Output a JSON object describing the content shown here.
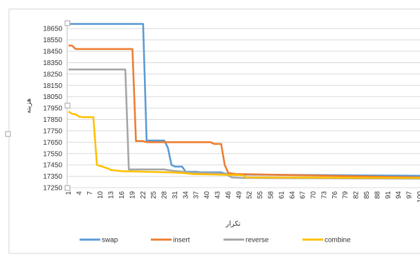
{
  "chart_data": {
    "type": "line",
    "xlabel": "تکرار",
    "ylabel": "هزینه",
    "ylim": [
      17250,
      18700
    ],
    "yticks": [
      18650,
      18550,
      18450,
      18350,
      18250,
      18150,
      18050,
      17950,
      17850,
      17750,
      17650,
      17550,
      17450,
      17350,
      17250
    ],
    "xticks": [
      1,
      4,
      7,
      10,
      13,
      16,
      19,
      22,
      25,
      28,
      31,
      34,
      37,
      40,
      43,
      46,
      49,
      52,
      55,
      58,
      61,
      64,
      67,
      70,
      73,
      76,
      79,
      82,
      85,
      88,
      91,
      94,
      97,
      100
    ],
    "xlim": [
      1,
      100
    ],
    "grid": "horizontal",
    "legend_position": "bottom",
    "series": [
      {
        "name": "swap",
        "color": "#5B9BD5",
        "points": [
          [
            1,
            18690
          ],
          [
            22,
            18690
          ],
          [
            23,
            17665
          ],
          [
            28,
            17665
          ],
          [
            29,
            17600
          ],
          [
            30,
            17450
          ],
          [
            31,
            17435
          ],
          [
            33,
            17435
          ],
          [
            34,
            17390
          ],
          [
            37,
            17390
          ],
          [
            38,
            17385
          ],
          [
            44,
            17385
          ],
          [
            45,
            17375
          ],
          [
            46,
            17370
          ],
          [
            48,
            17365
          ],
          [
            100,
            17355
          ]
        ]
      },
      {
        "name": "insert",
        "color": "#ED7D31",
        "points": [
          [
            1,
            18500
          ],
          [
            2,
            18500
          ],
          [
            3,
            18470
          ],
          [
            19,
            18470
          ],
          [
            20,
            17660
          ],
          [
            22,
            17660
          ],
          [
            23,
            17650
          ],
          [
            41,
            17650
          ],
          [
            42,
            17635
          ],
          [
            44,
            17635
          ],
          [
            45,
            17450
          ],
          [
            46,
            17380
          ],
          [
            48,
            17370
          ],
          [
            100,
            17340
          ]
        ]
      },
      {
        "name": "reverse",
        "color": "#A5A5A5",
        "points": [
          [
            1,
            18290
          ],
          [
            17,
            18290
          ],
          [
            18,
            17410
          ],
          [
            28,
            17410
          ],
          [
            30,
            17400
          ],
          [
            35,
            17385
          ],
          [
            45,
            17375
          ],
          [
            47,
            17340
          ],
          [
            50,
            17335
          ],
          [
            100,
            17330
          ]
        ]
      },
      {
        "name": "combine",
        "color": "#FFC000",
        "points": [
          [
            1,
            17920
          ],
          [
            2,
            17900
          ],
          [
            3,
            17895
          ],
          [
            4,
            17875
          ],
          [
            5,
            17870
          ],
          [
            8,
            17870
          ],
          [
            9,
            17450
          ],
          [
            10,
            17440
          ],
          [
            12,
            17420
          ],
          [
            13,
            17405
          ],
          [
            16,
            17395
          ],
          [
            29,
            17385
          ],
          [
            33,
            17380
          ],
          [
            36,
            17370
          ],
          [
            50,
            17360
          ],
          [
            51,
            17340
          ],
          [
            100,
            17335
          ]
        ]
      }
    ]
  }
}
